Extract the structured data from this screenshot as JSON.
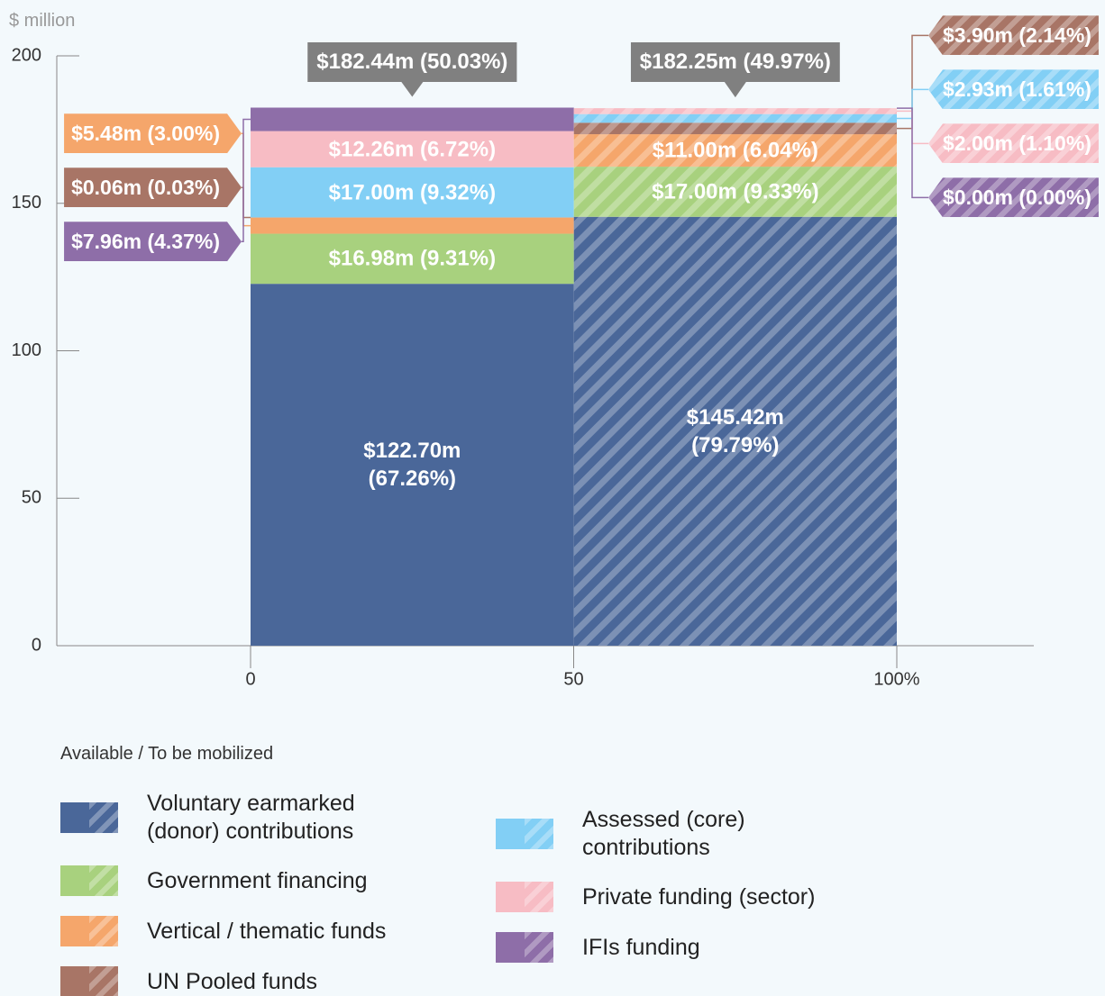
{
  "chart_data": {
    "type": "marimekko",
    "y_label": "$ million",
    "legend_title": "Available / To be mobilized",
    "xlim": [
      0,
      100
    ],
    "xticks": [
      0,
      50,
      {
        "value": 100,
        "label": "100%"
      }
    ],
    "ylim": [
      0,
      200
    ],
    "yticks": [
      0,
      50,
      100,
      150,
      200
    ],
    "column_widths": [
      50.03,
      49.97
    ],
    "totals": [
      182.44,
      182.25
    ],
    "total_labels": [
      "$182.44m (50.03%)",
      "$182.25m (49.97%)"
    ],
    "hatched_column": 1,
    "series": [
      {
        "name": "Voluntary earmarked (donor) contributions",
        "color": "#4a6799",
        "values": [
          122.7,
          145.42
        ],
        "value_labels": [
          "$122.70m (67.26%)",
          "$145.42m (79.79%)"
        ]
      },
      {
        "name": "Government financing",
        "color": "#a8d17e",
        "values": [
          16.98,
          17.0
        ],
        "value_labels": [
          "$16.98m (9.31%)",
          "$17.00m (9.33%)"
        ]
      },
      {
        "name": "Vertical / thematic funds",
        "color": "#f5a66b",
        "values": [
          5.48,
          11.0
        ],
        "value_labels": [
          "$5.48m (3.00%)",
          "$11.00m (6.04%)"
        ]
      },
      {
        "name": "UN Pooled funds",
        "color": "#a87566",
        "values": [
          0.06,
          3.9
        ],
        "value_labels": [
          "$0.06m (0.03%)",
          "$3.90m (2.14%)"
        ]
      },
      {
        "name": "Assessed (core) contributions",
        "color": "#82cff5",
        "values": [
          17.0,
          2.93
        ],
        "value_labels": [
          "$17.00m (9.32%)",
          "$2.93m (1.61%)"
        ]
      },
      {
        "name": "Private funding (sector)",
        "color": "#f7bcc4",
        "values": [
          12.26,
          2.0
        ],
        "value_labels": [
          "$12.26m (6.72%)",
          "$2.00m (1.10%)"
        ]
      },
      {
        "name": "IFIs funding",
        "color": "#8e6ea8",
        "values": [
          7.96,
          0.0
        ],
        "value_labels": [
          "$7.96m (4.37%)",
          "$0.00m (0.00%)"
        ]
      }
    ]
  }
}
